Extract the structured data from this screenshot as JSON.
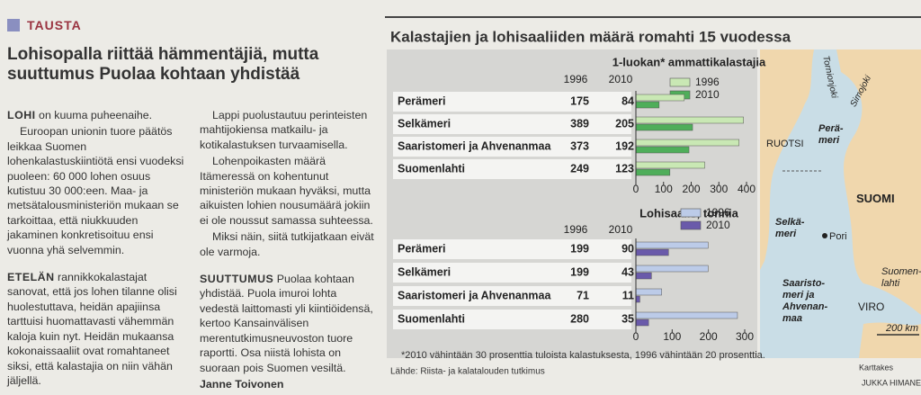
{
  "article": {
    "section": "TAUSTA",
    "title": "Lohisopalla riittää hämmentäjiä, mutta suuttumus Puolaa kohtaan yhdistää",
    "col1": [
      {
        "lead": "LOHI",
        "text": " on kuuma puheenaihe."
      },
      {
        "text": "Euroopan unionin tuore päätös leikkaa Suomen lohenkalastuskiintiötä ensi vuodeksi puoleen: 60 000 lohen osuus kutistuu 30 000:een. Maa- ja metsätalousministeriön mukaan se tarkoittaa, että niukkuuden jakaminen konkretisoituu ensi vuonna yhä selvemmin."
      },
      {
        "lead": "ETELÄN",
        "text": " rannikkokalastajat sanovat, että jos lohen tilanne olisi huolestuttava, heidän apajiinsa tarttuisi huomattavasti vähemmän kaloja kuin nyt. Heidän mukaansa kokonaissaaliit ovat romahtaneet siksi, että kalastajia on niin vähän jäljellä."
      }
    ],
    "col2": [
      {
        "text": "Lappi puolustautuu perinteisten mahtijokiensa matkailu- ja kotikalastuksen turvaamisella."
      },
      {
        "text": "Lohenpoikasten määrä Itämeressä on kohentunut ministeriön mukaan hyväksi, mutta aikuisten lohien nousumäärä jokiin ei ole noussut samassa suhteessa."
      },
      {
        "text": "Miksi näin, siitä tutkijatkaan eivät ole varmoja."
      },
      {
        "lead": "SUUTTUMUS",
        "text": " Puolaa kohtaan yhdistää. Puola imuroi lohta vedestä laittomasti yli kiintiöidensä, kertoo Kansainvälisen merentutkimusneuvoston tuore raportti. Osa niistä lohista on suoraan pois Suomen vesiltä."
      }
    ],
    "author": "Janne Toivonen"
  },
  "graphic": {
    "title": "Kalastajien ja lohisaaliiden määrä romahti 15 vuodessa",
    "footnote": "*2010 vähintään 30 prosenttia tuloista kalastuksesta, 1996 vähintään 20 prosenttia.",
    "source": "Lähde: Riista- ja kalatalouden tutkimus"
  },
  "chart_data": [
    {
      "type": "bar",
      "orientation": "horizontal",
      "title": "1-luokan* ammattikalastajia",
      "categories": [
        "Perämeri",
        "Selkämeri",
        "Saaristomeri ja Ahvenanmaa",
        "Suomenlahti"
      ],
      "series": [
        {
          "name": "1996",
          "color": "#c9e8b4",
          "values": [
            175,
            389,
            373,
            249
          ]
        },
        {
          "name": "2010",
          "color": "#4fae5a",
          "values": [
            84,
            205,
            192,
            123
          ]
        }
      ],
      "xlim": [
        0,
        400
      ],
      "xticks": [
        0,
        100,
        200,
        300,
        400
      ]
    },
    {
      "type": "bar",
      "orientation": "horizontal",
      "title": "Lohisaalis, tonnia",
      "categories": [
        "Perämeri",
        "Selkämeri",
        "Saaristomeri ja Ahvenanmaa",
        "Suomenlahti"
      ],
      "series": [
        {
          "name": "1996",
          "color": "#bccbe8",
          "values": [
            199,
            199,
            71,
            280
          ]
        },
        {
          "name": "2010",
          "color": "#6a5aaa",
          "values": [
            90,
            43,
            11,
            35
          ]
        }
      ],
      "xlim": [
        0,
        300
      ],
      "xticks": [
        0,
        100,
        200,
        300
      ]
    }
  ],
  "map": {
    "labels": [
      {
        "lines": [
          "Tornionjoki"
        ]
      },
      {
        "lines": [
          "Simojoki"
        ]
      },
      {
        "lines": [
          "Perä-",
          "meri"
        ]
      },
      {
        "lines": [
          "RUOTSI"
        ]
      },
      {
        "lines": [
          "SUOMI"
        ]
      },
      {
        "lines": [
          "Selkä-",
          "meri"
        ]
      },
      {
        "lines": [
          "Pori"
        ]
      },
      {
        "lines": [
          "Saaristo-",
          "meri ja",
          "Ahvenan-",
          "maa"
        ]
      },
      {
        "lines": [
          "Suomen-",
          "lahti"
        ]
      },
      {
        "lines": [
          "VIRO"
        ]
      },
      {
        "lines": [
          "200 km"
        ]
      }
    ],
    "credit": "Karttakes",
    "byline": "JUKKA HIMANE"
  }
}
